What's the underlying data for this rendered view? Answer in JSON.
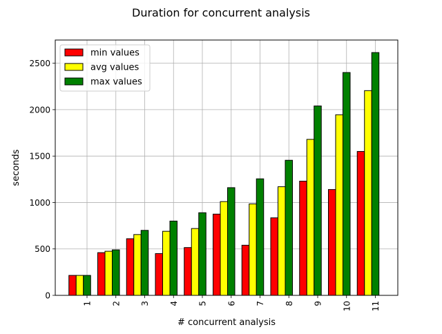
{
  "chart_data": {
    "type": "bar",
    "title": "Duration for concurrent analysis",
    "xlabel": "# concurrent analysis",
    "ylabel": "seconds",
    "categories": [
      "1",
      "2",
      "3",
      "4",
      "5",
      "6",
      "7",
      "8",
      "9",
      "10",
      "11"
    ],
    "series": [
      {
        "name": "min values",
        "color": "#ff0000",
        "values": [
          215,
          460,
          610,
          450,
          515,
          875,
          540,
          835,
          1230,
          1140,
          1550
        ]
      },
      {
        "name": "avg values",
        "color": "#ffff00",
        "values": [
          215,
          475,
          655,
          690,
          720,
          1010,
          985,
          1170,
          1680,
          1945,
          2205
        ]
      },
      {
        "name": "max values",
        "color": "#008000",
        "values": [
          215,
          490,
          700,
          800,
          890,
          1160,
          1255,
          1455,
          2040,
          2400,
          2615
        ]
      }
    ],
    "yticks": [
      "0",
      "500",
      "1000",
      "1500",
      "2000",
      "2500"
    ],
    "ylim": [
      0,
      2750
    ],
    "grid": true,
    "legend_position": "upper left"
  }
}
